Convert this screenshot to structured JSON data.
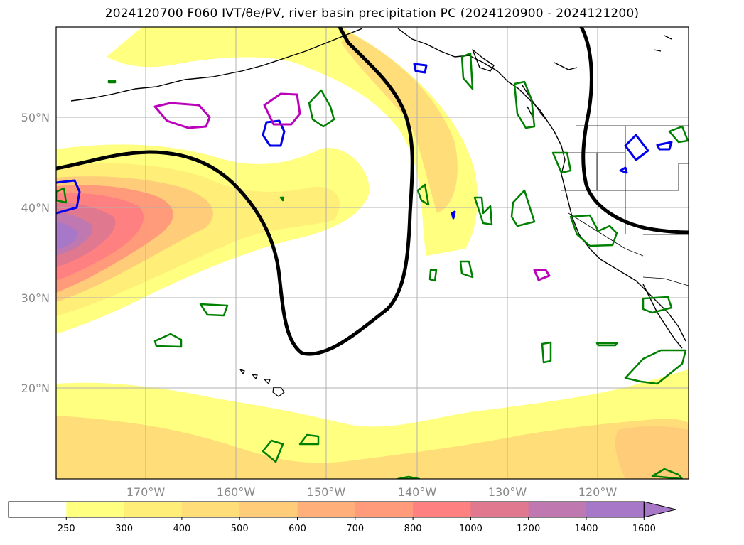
{
  "title": "2024120700 F060 IVT/θe/PV, river basin precipitation PC (2024120900 - 2024121200)",
  "lat_labels": [
    "50°N",
    "40°N",
    "30°N",
    "20°N"
  ],
  "lon_labels": [
    "170°W",
    "160°W",
    "150°W",
    "140°W",
    "130°W",
    "120°W"
  ],
  "colorbar": {
    "levels": [
      "250",
      "300",
      "400",
      "500",
      "600",
      "700",
      "800",
      "1000",
      "1200",
      "1400",
      "1600"
    ],
    "colors": [
      "#ffffff",
      "#ffff80",
      "#ffee78",
      "#ffdd78",
      "#ffcc7a",
      "#ffb07a",
      "#ff9a7a",
      "#ff8080",
      "#e07890",
      "#c078b0",
      "#a878c8"
    ],
    "extend_color": "#a878c8"
  },
  "legend_colors": {
    "theta_e_contour": "#000000",
    "pv_positive": "#0000ee",
    "pv_negative": "#bb00bb",
    "precip_pc": "#008000",
    "coast": "#000000"
  }
}
